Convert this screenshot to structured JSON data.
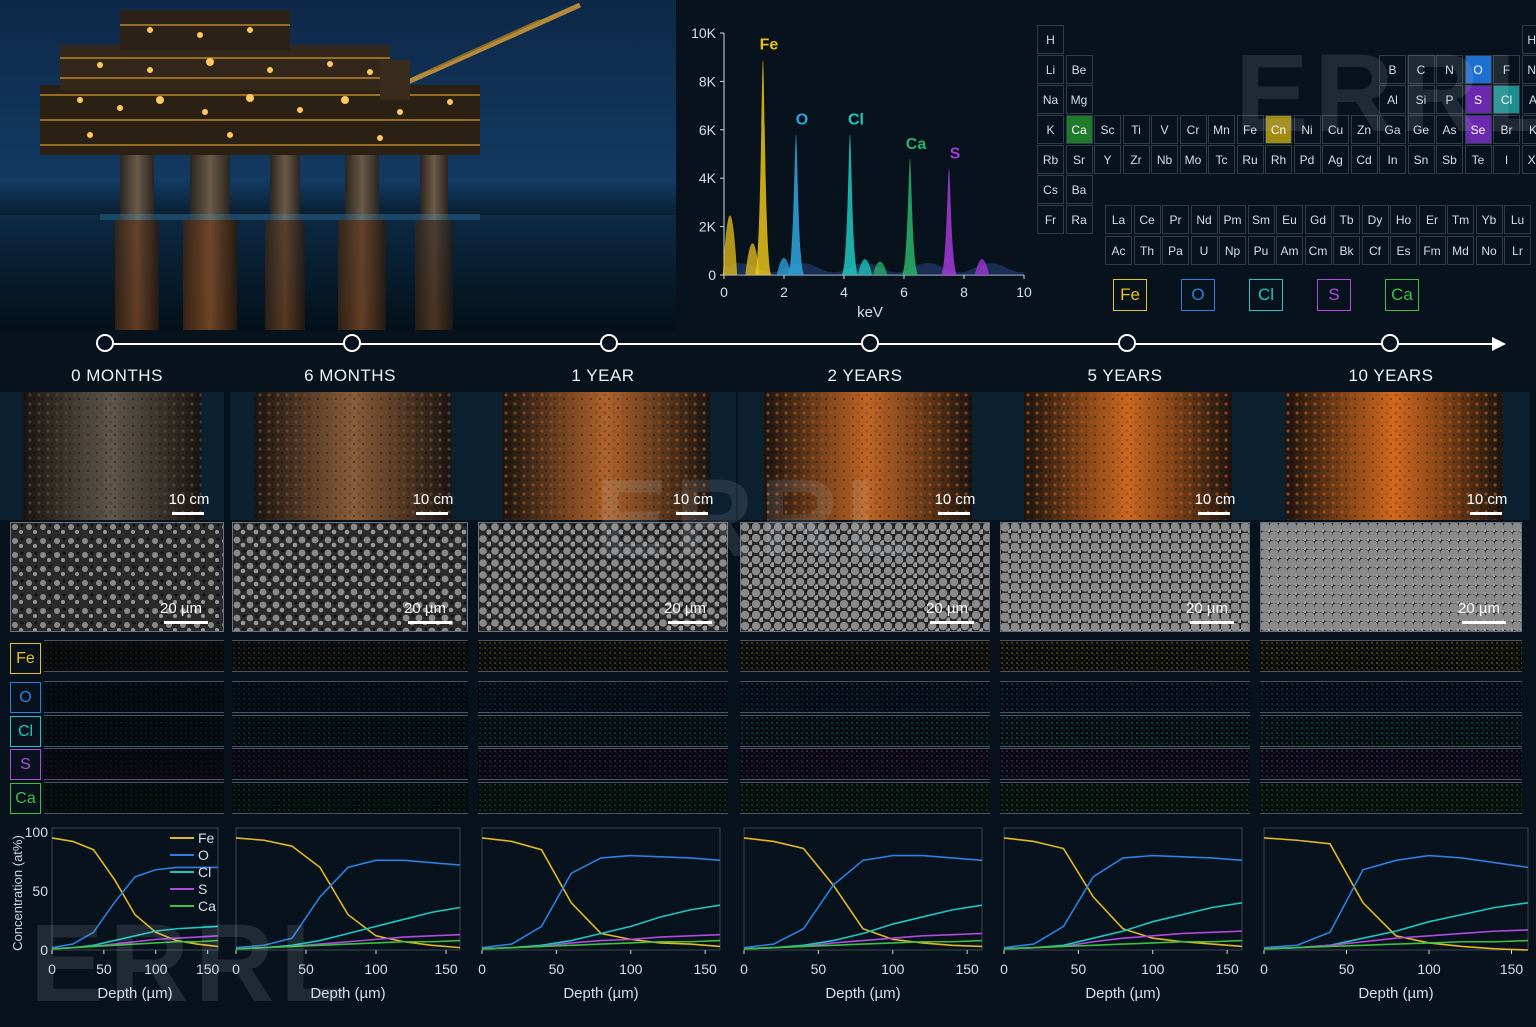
{
  "watermark": "ERRL",
  "spectrum": {
    "type": "line",
    "xlabel": "keV",
    "x_ticks": [
      "0",
      "2",
      "4",
      "6",
      "8",
      "10"
    ],
    "y_ticks": [
      "0",
      "2K",
      "4K",
      "6K",
      "8K",
      "10K"
    ],
    "xlim": [
      0,
      10
    ],
    "ylim": [
      0,
      10000
    ],
    "peaks": [
      {
        "name": "Fe",
        "energy_kev": 1.3,
        "counts": 8900,
        "color": "#e9c21a"
      },
      {
        "name": "O",
        "energy_kev": 2.4,
        "counts": 5800,
        "color": "#2fa6e0"
      },
      {
        "name": "Cl",
        "energy_kev": 4.2,
        "counts": 5800,
        "color": "#1ec8c0"
      },
      {
        "name": "Ca",
        "energy_kev": 6.2,
        "counts": 4800,
        "color": "#29b36a"
      },
      {
        "name": "S",
        "energy_kev": 7.5,
        "counts": 4400,
        "color": "#a43ad8"
      }
    ]
  },
  "periodic_table": {
    "rows": [
      [
        "H",
        "",
        "",
        "",
        "",
        "",
        "",
        "",
        "",
        "",
        "",
        "",
        "",
        "",
        "",
        "",
        "",
        "He"
      ],
      [
        "Li",
        "Be",
        "",
        "",
        "",
        "",
        "",
        "",
        "",
        "",
        "",
        "",
        "B",
        "C",
        "N",
        "O",
        "F",
        "Ne"
      ],
      [
        "Na",
        "Mg",
        "",
        "",
        "",
        "",
        "",
        "",
        "",
        "",
        "",
        "",
        "Al",
        "Si",
        "P",
        "S",
        "Cl",
        "Ar"
      ],
      [
        "K",
        "Ca",
        "Sc",
        "Ti",
        "V",
        "Cr",
        "Mn",
        "Fe",
        "Cn",
        "Ni",
        "Cu",
        "Zn",
        "Ga",
        "Ge",
        "As",
        "Se",
        "Br",
        "Kr"
      ],
      [
        "Rb",
        "Sr",
        "Y",
        "Zr",
        "Nb",
        "Mo",
        "Tc",
        "Ru",
        "Rh",
        "Pd",
        "Ag",
        "Cd",
        "In",
        "Sn",
        "Sb",
        "Te",
        "I",
        "Xe"
      ],
      [
        "Cs",
        "Ba",
        "",
        "",
        "",
        "",
        "",
        "",
        "",
        "",
        "",
        "",
        "",
        "",
        "",
        "",
        "",
        ""
      ],
      [
        "Fr",
        "Ra",
        "",
        "",
        "",
        "",
        "",
        "",
        "",
        "",
        "",
        "",
        "",
        "",
        "",
        "",
        "",
        ""
      ]
    ],
    "lanthanides": [
      "La",
      "Ce",
      "Pr",
      "Nd",
      "Pm",
      "Sm",
      "Eu",
      "Gd",
      "Tb",
      "Dy",
      "Ho",
      "Er",
      "Tm",
      "Yb",
      "Lu"
    ],
    "actinides": [
      "Ac",
      "Th",
      "Pa",
      "U",
      "Np",
      "Pu",
      "Am",
      "Cm",
      "Bk",
      "Cf",
      "Es",
      "Fm",
      "Md",
      "No",
      "Lr"
    ],
    "highlights": {
      "O": "#1f6fd0",
      "S": "#6a2ab0",
      "Cl": "#1b8f8f",
      "Se": "#6a2ab0",
      "Ca": "#1f7a2a",
      "Cn": "#a08a10"
    }
  },
  "elements_legend": [
    {
      "symbol": "Fe",
      "color": "#e9c21a"
    },
    {
      "symbol": "O",
      "color": "#2f7ee0"
    },
    {
      "symbol": "Cl",
      "color": "#1ec8c0"
    },
    {
      "symbol": "S",
      "color": "#b04ae0"
    },
    {
      "symbol": "Ca",
      "color": "#3cc040"
    }
  ],
  "timepoints": [
    {
      "label": "0 MONTHS",
      "scale_photo": "10 cm",
      "scale_sem": "20 µm"
    },
    {
      "label": "6 MONTHS",
      "scale_photo": "10 cm",
      "scale_sem": "20 µm"
    },
    {
      "label": "1 YEAR",
      "scale_photo": "10 cm",
      "scale_sem": "20 µm"
    },
    {
      "label": "2 YEARS",
      "scale_photo": "10 cm",
      "scale_sem": "20 µm"
    },
    {
      "label": "5 YEARS",
      "scale_photo": "10 cm",
      "scale_sem": "20 µm"
    },
    {
      "label": "10 YEARS",
      "scale_photo": "10 cm",
      "scale_sem": "20 µm"
    }
  ],
  "rust_level": [
    0.05,
    0.4,
    0.7,
    0.85,
    0.95,
    1.0
  ],
  "profiles": {
    "type": "line",
    "ylabel": "Concentration (at%)",
    "xlabel": "Depth (µm)",
    "x_ticks": [
      "0",
      "50",
      "100",
      "150"
    ],
    "y_ticks": [
      "0",
      "50",
      "100"
    ],
    "xlim": [
      0,
      160
    ],
    "ylim": [
      0,
      100
    ],
    "legend": [
      "Fe",
      "O",
      "Cl",
      "S",
      "Ca"
    ],
    "colors": {
      "Fe": "#e0b820",
      "O": "#2f7ee0",
      "Cl": "#1ec8c0",
      "S": "#b04ae0",
      "Ca": "#3cc040"
    },
    "series": [
      {
        "Fe": [
          95,
          92,
          85,
          60,
          30,
          15,
          8,
          5,
          3
        ],
        "O": [
          2,
          5,
          15,
          40,
          62,
          68,
          70,
          70,
          70
        ],
        "Cl": [
          1,
          2,
          4,
          8,
          12,
          16,
          18,
          19,
          20
        ],
        "S": [
          1,
          2,
          3,
          5,
          7,
          9,
          10,
          11,
          12
        ],
        "Ca": [
          1,
          2,
          3,
          4,
          5,
          6,
          7,
          7,
          8
        ]
      },
      {
        "Fe": [
          95,
          93,
          88,
          70,
          30,
          12,
          7,
          4,
          2
        ],
        "O": [
          2,
          4,
          10,
          45,
          70,
          76,
          76,
          74,
          72
        ],
        "Cl": [
          1,
          2,
          4,
          8,
          14,
          20,
          26,
          32,
          36
        ],
        "S": [
          1,
          2,
          3,
          5,
          7,
          9,
          11,
          12,
          13
        ],
        "Ca": [
          1,
          2,
          3,
          4,
          5,
          6,
          7,
          7,
          8
        ]
      },
      {
        "Fe": [
          95,
          92,
          85,
          40,
          14,
          9,
          6,
          5,
          3
        ],
        "O": [
          2,
          5,
          20,
          65,
          78,
          80,
          79,
          78,
          76
        ],
        "Cl": [
          1,
          2,
          4,
          8,
          14,
          20,
          28,
          34,
          38
        ],
        "S": [
          1,
          2,
          3,
          6,
          8,
          9,
          11,
          12,
          13
        ],
        "Ca": [
          1,
          2,
          3,
          4,
          5,
          6,
          7,
          7,
          8
        ]
      },
      {
        "Fe": [
          95,
          92,
          86,
          55,
          18,
          9,
          6,
          4,
          3
        ],
        "O": [
          2,
          5,
          18,
          55,
          76,
          80,
          80,
          78,
          76
        ],
        "Cl": [
          1,
          2,
          4,
          8,
          14,
          22,
          28,
          34,
          38
        ],
        "S": [
          1,
          2,
          3,
          6,
          8,
          10,
          12,
          13,
          14
        ],
        "Ca": [
          1,
          2,
          3,
          4,
          5,
          6,
          7,
          7,
          8
        ]
      },
      {
        "Fe": [
          95,
          92,
          86,
          45,
          18,
          10,
          7,
          5,
          3
        ],
        "O": [
          2,
          5,
          20,
          62,
          78,
          80,
          79,
          78,
          76
        ],
        "Cl": [
          1,
          2,
          4,
          10,
          16,
          24,
          30,
          36,
          40
        ],
        "S": [
          1,
          2,
          3,
          7,
          10,
          12,
          14,
          15,
          16
        ],
        "Ca": [
          1,
          2,
          3,
          4,
          5,
          6,
          7,
          7,
          8
        ]
      },
      {
        "Fe": [
          95,
          93,
          90,
          40,
          12,
          6,
          3,
          1,
          0
        ],
        "O": [
          2,
          4,
          15,
          68,
          76,
          80,
          78,
          74,
          70
        ],
        "Cl": [
          1,
          2,
          4,
          10,
          16,
          24,
          30,
          36,
          40
        ],
        "S": [
          1,
          2,
          4,
          7,
          10,
          12,
          14,
          16,
          17
        ],
        "Ca": [
          1,
          2,
          3,
          4,
          5,
          6,
          7,
          7,
          8
        ]
      }
    ]
  }
}
